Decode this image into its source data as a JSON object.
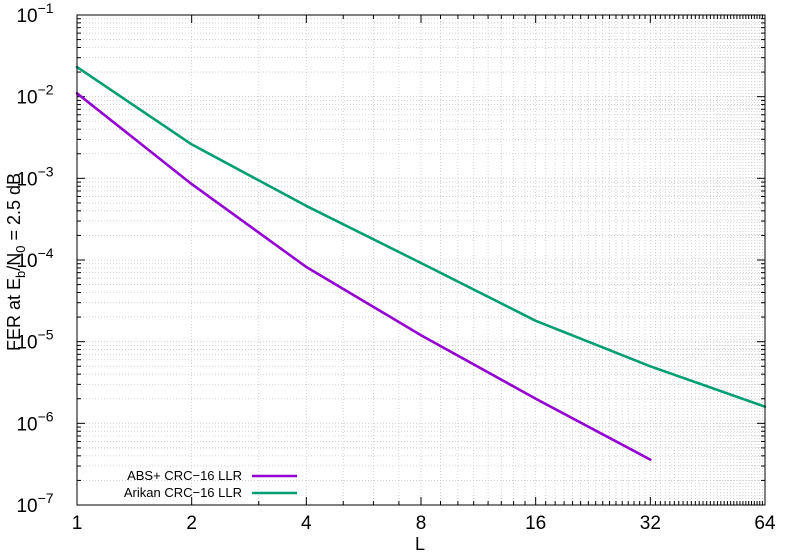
{
  "chart_data": {
    "type": "line",
    "x_scale": "log2",
    "y_scale": "log10",
    "xlabel": "L",
    "ylabel": {
      "prefix": "FER at E",
      "sub1": "b",
      "mid": "/N",
      "sub2": "0",
      "suffix": " = 2.5 dB"
    },
    "xlim": [
      1,
      64
    ],
    "ylim": [
      1e-07,
      0.1
    ],
    "x_ticks": [
      1,
      2,
      4,
      8,
      16,
      32,
      64
    ],
    "x_tick_labels": [
      "1",
      "2",
      "4",
      "8",
      "16",
      "32",
      "64"
    ],
    "y_ticks": [
      {
        "base": "10",
        "exp": "−7",
        "value": 1e-07
      },
      {
        "base": "10",
        "exp": "−6",
        "value": 1e-06
      },
      {
        "base": "10",
        "exp": "−5",
        "value": 1e-05
      },
      {
        "base": "10",
        "exp": "−4",
        "value": 0.0001
      },
      {
        "base": "10",
        "exp": "−3",
        "value": 0.001
      },
      {
        "base": "10",
        "exp": "−2",
        "value": 0.01
      },
      {
        "base": "10",
        "exp": "−1",
        "value": 0.1
      }
    ],
    "grid": true,
    "legend_position": "bottom-left",
    "series": [
      {
        "name": "ABS+ CRC−16 LLR",
        "color": "#9400d3",
        "x": [
          1,
          2,
          4,
          8,
          16,
          32
        ],
        "y": [
          0.011,
          0.00085,
          8.2e-05,
          1.2e-05,
          2e-06,
          3.6e-07
        ]
      },
      {
        "name": "Arikan CRC−16 LLR",
        "color": "#009e73",
        "x": [
          1,
          2,
          4,
          8,
          16,
          32,
          64
        ],
        "y": [
          0.023,
          0.0026,
          0.00046,
          9.2e-05,
          1.8e-05,
          5e-06,
          1.6e-06
        ]
      }
    ]
  }
}
